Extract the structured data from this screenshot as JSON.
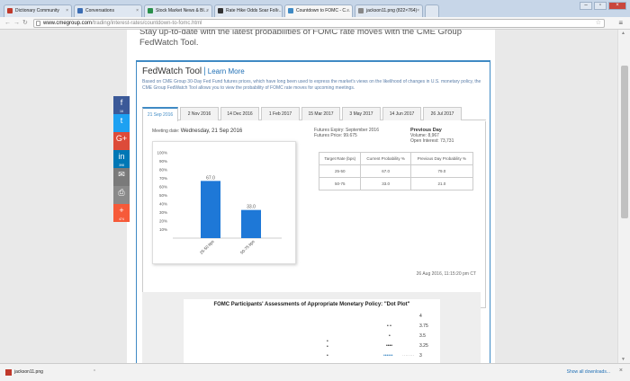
{
  "browser": {
    "tabs": [
      {
        "label": "Dictionary Community",
        "color": "#c0392b"
      },
      {
        "label": "Conversations",
        "color": "#3b6db3"
      },
      {
        "label": "Stock Market News & Bl…",
        "color": "#2a8f4a"
      },
      {
        "label": "Rate Hike Odds Soar Foll…",
        "color": "#333333"
      },
      {
        "label": "Countdown to FOMC - C…",
        "color": "#3f8ac4"
      },
      {
        "label": "jackson11.png (822×764)",
        "color": "#888888"
      }
    ],
    "url_domain": "www.cmegroup.com",
    "url_path": "/trading/interest-rates/countdown-to-fomc.html"
  },
  "page": {
    "intro": "Stay up-to-date with the latest probabilities of FOMC rate moves with the CME Group FedWatch Tool."
  },
  "fedwatch": {
    "title": "FedWatch Tool",
    "learn_more": "Learn More",
    "description": "Based on CME Group 30-Day Fed Fund futures prices, which have long been used to express the market's views on the likelihood of changes in U.S. monetary policy, the CME Group FedWatch Tool allows you to view the probability of FOMC rate moves for upcoming meetings.",
    "tabs": [
      "21 Sep 2016",
      "2 Nov 2016",
      "14 Dec 2016",
      "1 Feb 2017",
      "15 Mar 2017",
      "3 May 2017",
      "14 Jun 2017",
      "26 Jul 2017"
    ],
    "meeting_label": "Meeting date:",
    "meeting_date": "Wednesday, 21 Sep 2016",
    "futures_expiry": "Futures Expiry: September 2016",
    "futures_price": "Futures Price: 99.675",
    "prev_day_title": "Previous Day",
    "prev_volume": "Volume: 8,967",
    "prev_open_interest": "Open Interest: 73,731",
    "table": {
      "headers": [
        "Target Rate (bps)",
        "Current Probability %",
        "Previous Day Probability %"
      ],
      "rows": [
        [
          "25-50",
          "67.0",
          "79.0"
        ],
        [
          "50-75",
          "33.0",
          "21.0"
        ]
      ]
    },
    "timestamp": "26 Aug 2016, 11:15:20 pm CT"
  },
  "chart_data": {
    "type": "bar",
    "categories": [
      "25-50 bps",
      "50-75 bps"
    ],
    "values": [
      67.0,
      33.0
    ],
    "value_labels": [
      "67.0",
      "33.0"
    ],
    "yticks": [
      "100%",
      "90%",
      "80%",
      "70%",
      "60%",
      "50%",
      "40%",
      "30%",
      "20%",
      "10%"
    ],
    "ylim": [
      0,
      100
    ],
    "grid": false,
    "color": "#1e78d7"
  },
  "dotplot": {
    "title": "FOMC Participants' Assessments of Appropriate Monetary Policy: \"Dot Plot\"",
    "values": [
      "4",
      "3.75",
      "3.5",
      "3.25",
      "3"
    ]
  },
  "share": [
    {
      "icon": "f",
      "count": "16",
      "color": "#3b5998"
    },
    {
      "icon": "t",
      "count": "",
      "color": "#1da1f2"
    },
    {
      "icon": "G+",
      "count": "",
      "color": "#dd4b39"
    },
    {
      "icon": "in",
      "count": "398",
      "color": "#0077b5"
    },
    {
      "icon": "✉",
      "count": "",
      "color": "#7a7a7a"
    },
    {
      "icon": "⎙",
      "count": "",
      "color": "#8a8a8a"
    },
    {
      "icon": "+",
      "count": "474",
      "color": "#f65a39"
    }
  ],
  "downloads": {
    "file": "jackson11.png",
    "show_all": "Show all downloads..."
  }
}
